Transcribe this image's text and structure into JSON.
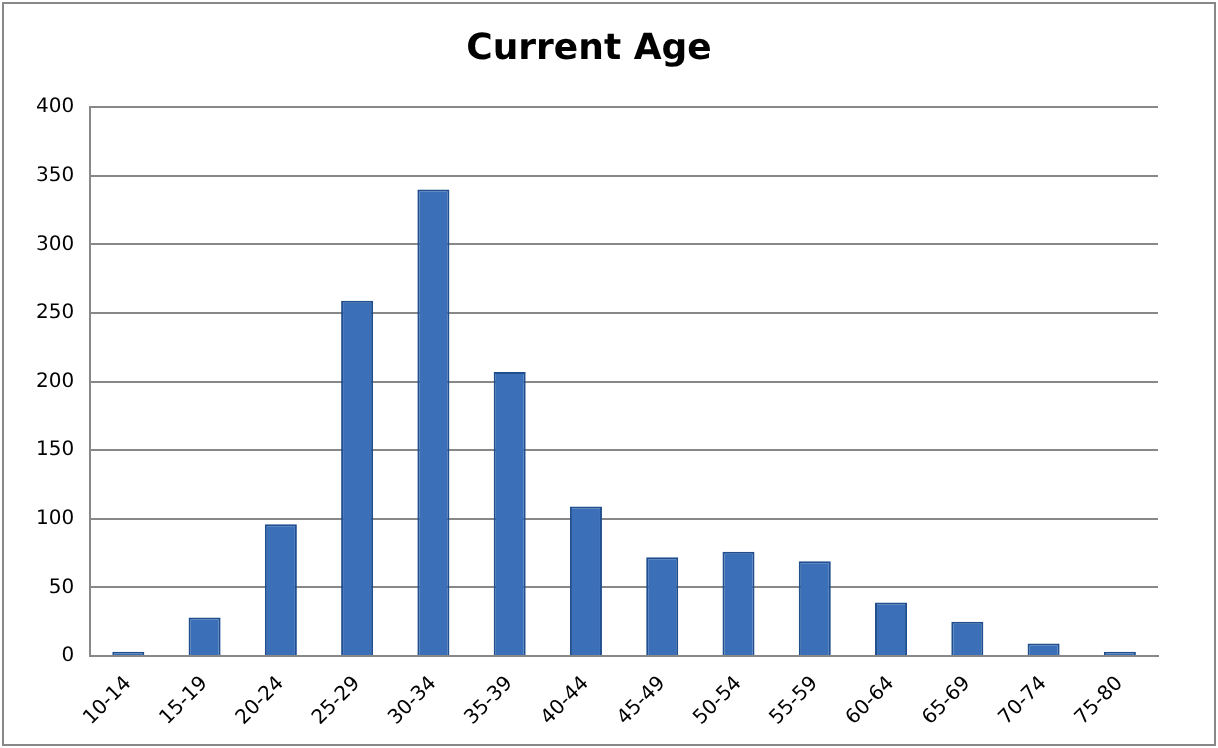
{
  "chart_data": {
    "type": "bar",
    "title": "Current Age",
    "categories": [
      "10-14",
      "15-19",
      "20-24",
      "25-29",
      "30-34",
      "35-39",
      "40-44",
      "45-49",
      "50-54",
      "55-59",
      "60-64",
      "65-69",
      "70-74",
      "75-80"
    ],
    "values": [
      3,
      28,
      96,
      259,
      340,
      207,
      109,
      72,
      76,
      69,
      39,
      25,
      9,
      3
    ],
    "color": "#3b6fb8",
    "ylim": [
      0,
      400
    ],
    "yticks": [
      0,
      50,
      100,
      150,
      200,
      250,
      300,
      350,
      400
    ],
    "grid": "y"
  }
}
